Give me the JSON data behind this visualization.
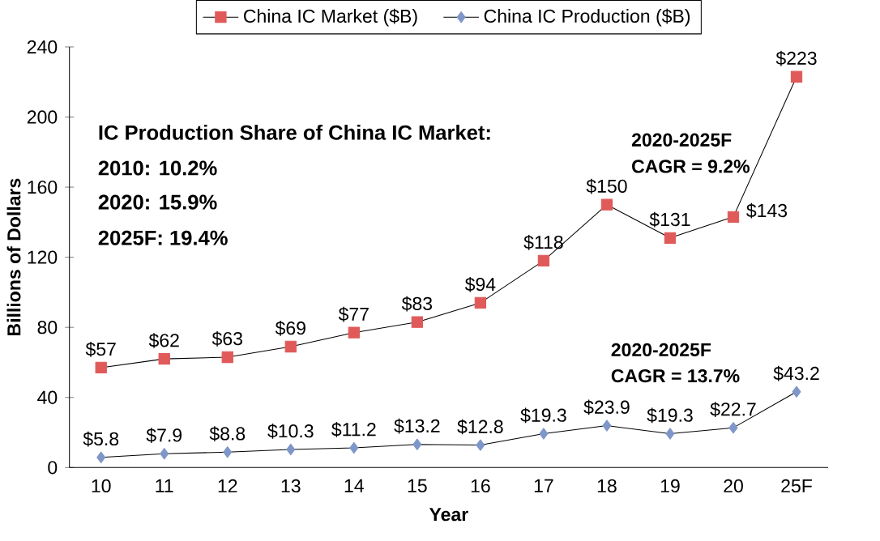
{
  "chart_data": {
    "type": "line",
    "xlabel": "Year",
    "ylabel": "Billions of Dollars",
    "categories": [
      "10",
      "11",
      "12",
      "13",
      "14",
      "15",
      "16",
      "17",
      "18",
      "19",
      "20",
      "25F"
    ],
    "series": [
      {
        "name": "China IC Market ($B)",
        "color": "#e05a5a",
        "marker": "square",
        "values": [
          57,
          62,
          63,
          69,
          77,
          83,
          94,
          118,
          150,
          131,
          143,
          223
        ],
        "value_labels": [
          "$57",
          "$62",
          "$63",
          "$69",
          "$77",
          "$83",
          "$94",
          "$118",
          "$150",
          "$131",
          "$143",
          "$223"
        ]
      },
      {
        "name": "China IC Production ($B)",
        "color": "#7f96c8",
        "marker": "diamond",
        "values": [
          5.8,
          7.9,
          8.8,
          10.3,
          11.2,
          13.2,
          12.8,
          19.3,
          23.9,
          19.3,
          22.7,
          43.2
        ],
        "value_labels": [
          "$5.8",
          "$7.9",
          "$8.8",
          "$10.3",
          "$11.2",
          "$13.2",
          "$12.8",
          "$19.3",
          "$23.9",
          "$19.3",
          "$22.7",
          "$43.2"
        ]
      }
    ],
    "ylim": [
      0,
      240
    ],
    "yticks": [
      0,
      40,
      80,
      120,
      160,
      200,
      240
    ],
    "grid": false,
    "legend": "top",
    "annotations": [
      "IC Production Share of China IC Market:",
      "2010: 10.2%",
      "2020: 15.9%",
      "2025F: 19.4%",
      "2020-2025F",
      "CAGR = 9.2%",
      "2020-2025F",
      "CAGR = 13.7%"
    ]
  }
}
